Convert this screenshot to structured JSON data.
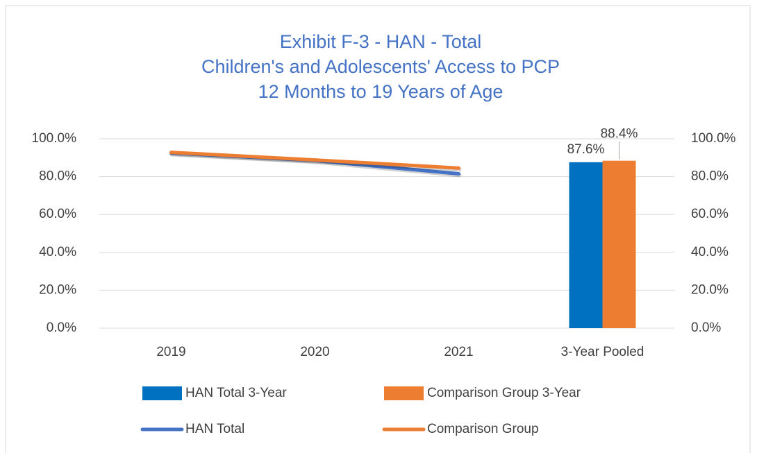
{
  "chart_data": {
    "type": "bar",
    "title": [
      "Exhibit F-3 - HAN - Total",
      "Children's and Adolescents' Access to PCP",
      "12 Months to 19 Years of Age"
    ],
    "categories": [
      "2019",
      "2020",
      "2021",
      "3-Year Pooled"
    ],
    "series": [
      {
        "name": "HAN Total 3-Year",
        "type": "bar",
        "axis": "y2",
        "color": "#0070c0",
        "values": [
          null,
          null,
          null,
          87.6
        ],
        "value_labels": [
          null,
          null,
          null,
          "87.6%"
        ]
      },
      {
        "name": "Comparison Group 3-Year",
        "type": "bar",
        "axis": "y2",
        "color": "#ed7d31",
        "values": [
          null,
          null,
          null,
          88.4
        ],
        "value_labels": [
          null,
          null,
          null,
          "88.4%"
        ]
      },
      {
        "name": "HAN Total",
        "type": "line",
        "color": "#4472c4",
        "values": [
          92.5,
          88.5,
          81.5,
          null
        ]
      },
      {
        "name": "Comparison Group",
        "type": "line",
        "color": "#ed7d31",
        "values": [
          92.8,
          88.8,
          84.5,
          null
        ]
      }
    ],
    "ylim": [
      0,
      100
    ],
    "yticks": [
      {
        "value": 0,
        "label": "0.0%"
      },
      {
        "value": 20,
        "label": "20.0%"
      },
      {
        "value": 40,
        "label": "40.0%"
      },
      {
        "value": 60,
        "label": "60.0%"
      },
      {
        "value": 80,
        "label": "80.0%"
      },
      {
        "value": 100,
        "label": "100.0%"
      }
    ],
    "y2lim": [
      0,
      100
    ],
    "y2ticks": [
      {
        "value": 0,
        "label": "0.0%"
      },
      {
        "value": 20,
        "label": "20.0%"
      },
      {
        "value": 40,
        "label": "40.0%"
      },
      {
        "value": 60,
        "label": "60.0%"
      },
      {
        "value": 80,
        "label": "80.0%"
      },
      {
        "value": 100,
        "label": "100.0%"
      }
    ],
    "grid": true,
    "legend": "bottom"
  }
}
